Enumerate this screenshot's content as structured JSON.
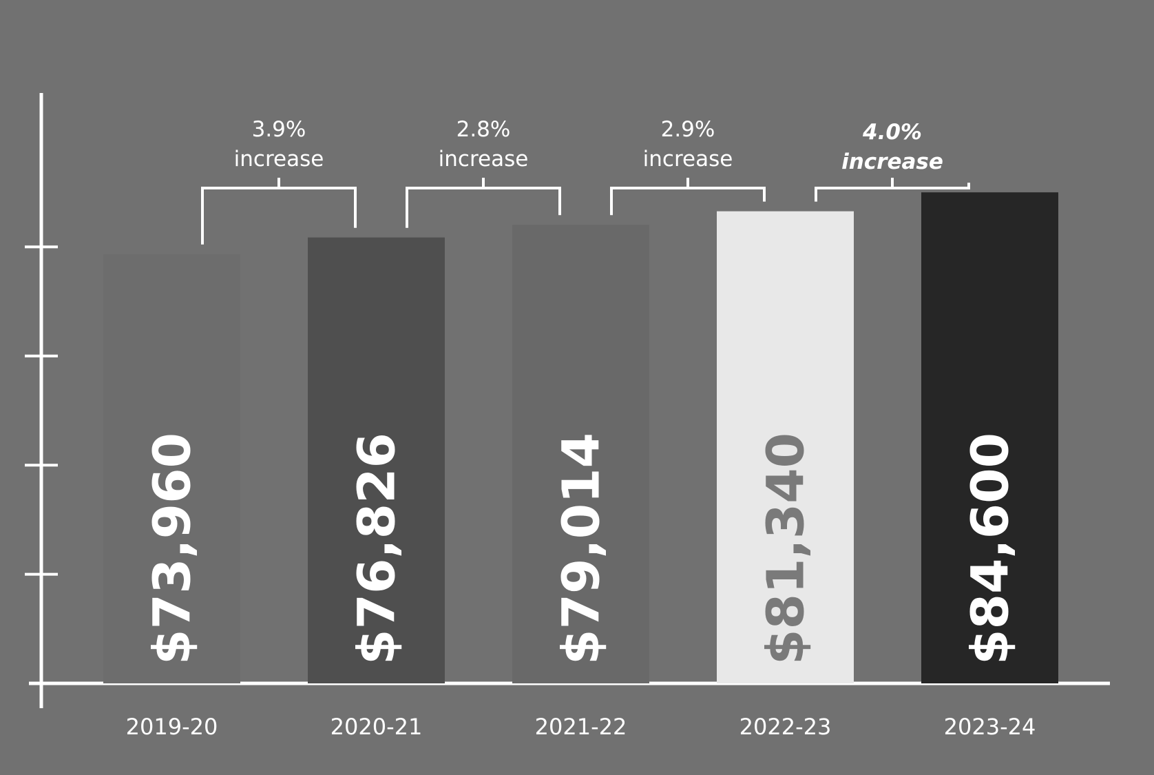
{
  "chart_data": {
    "type": "bar",
    "categories": [
      "2019-20",
      "2020-21",
      "2021-22",
      "2022-23",
      "2023-24"
    ],
    "values": [
      73960,
      76826,
      79014,
      81340,
      84600
    ],
    "value_labels": [
      "$73,960",
      "$76,826",
      "$79,014",
      "$81,340",
      "$84,600"
    ],
    "bar_colors": [
      "#6d6d6d",
      "#4f4f4f",
      "#696969",
      "#e8e8e8",
      "#262626"
    ],
    "label_colors": [
      "#ffffff",
      "#ffffff",
      "#ffffff",
      "#7a7a7a",
      "#ffffff"
    ],
    "annotations": [
      {
        "from": "2019-20",
        "to": "2020-21",
        "line1": "3.9%",
        "line2": "increase",
        "emphasis": false
      },
      {
        "from": "2020-21",
        "to": "2021-22",
        "line1": "2.8%",
        "line2": "increase",
        "emphasis": false
      },
      {
        "from": "2021-22",
        "to": "2022-23",
        "line1": "2.9%",
        "line2": "increase",
        "emphasis": false
      },
      {
        "from": "2022-23",
        "to": "2023-24",
        "line1": "4.0%",
        "line2": "increase",
        "emphasis": true
      }
    ],
    "ylim": [
      0,
      94000
    ],
    "y_ticks": [
      18800,
      37600,
      56400,
      75200
    ],
    "grid": false,
    "title": "",
    "xlabel": "",
    "ylabel": "",
    "background": "#717171",
    "axis_color": "#ffffff"
  }
}
